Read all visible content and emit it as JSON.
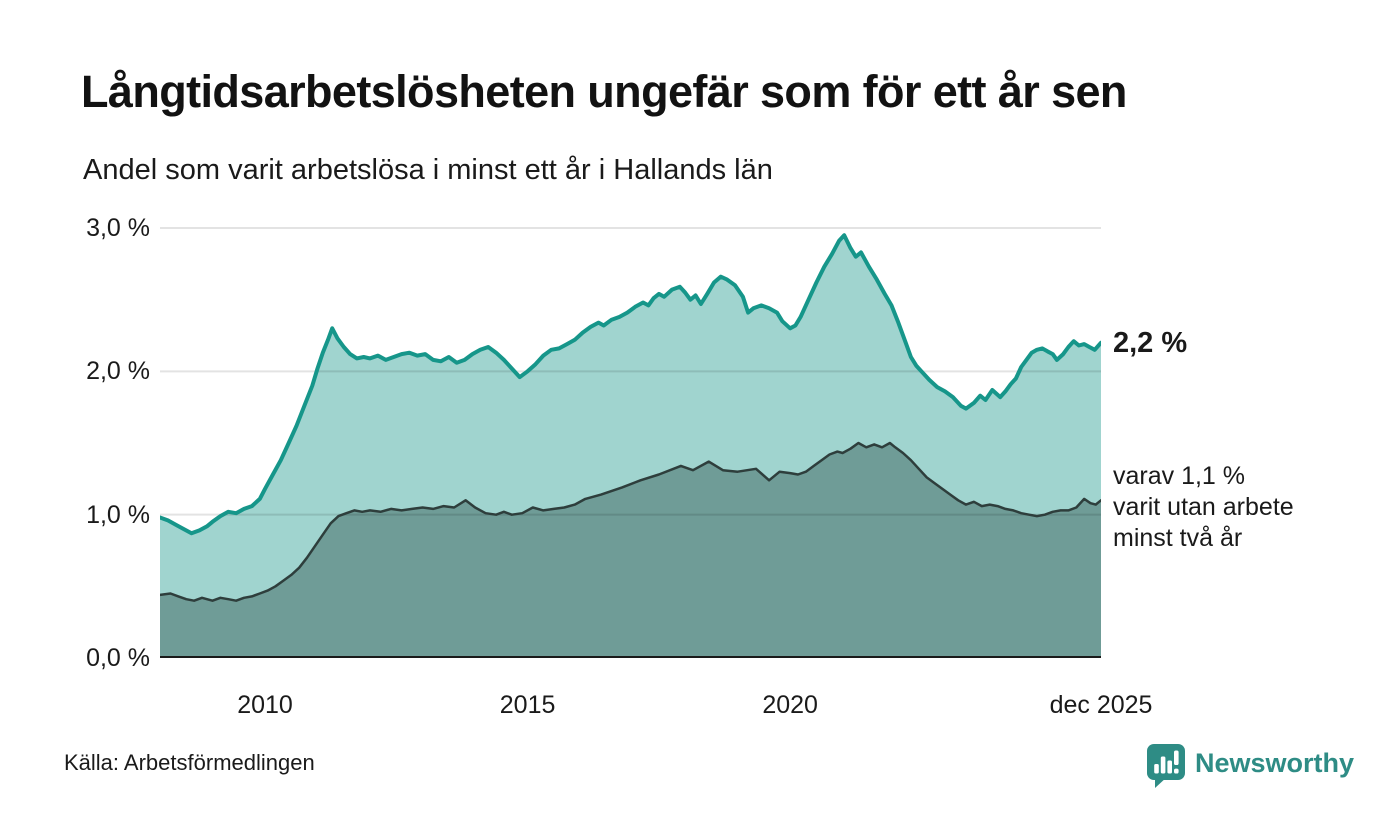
{
  "header": {
    "title": "Långtidsarbetslösheten ungefär som för ett år sen",
    "subtitle": "Andel som varit arbetslösa i minst ett år i Hallands län"
  },
  "chart_data": {
    "type": "area",
    "title": "Långtidsarbetslösheten ungefär som för ett år sen",
    "subtitle": "Andel som varit arbetslösa i minst ett år i Hallands län",
    "x_domain": [
      2008.0,
      2025.92
    ],
    "y_domain": [
      0,
      3.0
    ],
    "grid": "horizontal",
    "y_ticks": [
      {
        "value": 3.0,
        "label": "3,0 %"
      },
      {
        "value": 2.0,
        "label": "2,0 %"
      },
      {
        "value": 1.0,
        "label": "1,0 %"
      },
      {
        "value": 0.0,
        "label": "0,0 %"
      }
    ],
    "x_ticks": [
      {
        "value": 2010,
        "label": "2010"
      },
      {
        "value": 2015,
        "label": "2015"
      },
      {
        "value": 2020,
        "label": "2020"
      },
      {
        "value": 2025.92,
        "label": "dec 2025"
      }
    ],
    "annotations": {
      "latest_total": "2,2 %",
      "subset": [
        "varav 1,1 %",
        "varit utan arbete",
        "minst två år"
      ]
    },
    "series": [
      {
        "name": "arbetslösa minst ett år",
        "fill": "#a0d4cf",
        "stroke": "#16968a",
        "stroke_width": 4,
        "latest_value": 2.2,
        "points": [
          [
            2008.0,
            0.98
          ],
          [
            2008.15,
            0.96
          ],
          [
            2008.3,
            0.93
          ],
          [
            2008.45,
            0.9
          ],
          [
            2008.6,
            0.87
          ],
          [
            2008.75,
            0.89
          ],
          [
            2008.9,
            0.92
          ],
          [
            2009.0,
            0.95
          ],
          [
            2009.15,
            0.99
          ],
          [
            2009.3,
            1.02
          ],
          [
            2009.45,
            1.01
          ],
          [
            2009.6,
            1.04
          ],
          [
            2009.75,
            1.06
          ],
          [
            2009.9,
            1.11
          ],
          [
            2010.0,
            1.18
          ],
          [
            2010.15,
            1.28
          ],
          [
            2010.3,
            1.38
          ],
          [
            2010.45,
            1.5
          ],
          [
            2010.6,
            1.62
          ],
          [
            2010.75,
            1.76
          ],
          [
            2010.9,
            1.9
          ],
          [
            2011.0,
            2.02
          ],
          [
            2011.1,
            2.13
          ],
          [
            2011.2,
            2.22
          ],
          [
            2011.28,
            2.3
          ],
          [
            2011.38,
            2.23
          ],
          [
            2011.5,
            2.17
          ],
          [
            2011.62,
            2.12
          ],
          [
            2011.75,
            2.09
          ],
          [
            2011.88,
            2.1
          ],
          [
            2012.0,
            2.09
          ],
          [
            2012.15,
            2.11
          ],
          [
            2012.3,
            2.08
          ],
          [
            2012.45,
            2.1
          ],
          [
            2012.6,
            2.12
          ],
          [
            2012.75,
            2.13
          ],
          [
            2012.9,
            2.11
          ],
          [
            2013.05,
            2.12
          ],
          [
            2013.2,
            2.08
          ],
          [
            2013.35,
            2.07
          ],
          [
            2013.5,
            2.1
          ],
          [
            2013.65,
            2.06
          ],
          [
            2013.8,
            2.08
          ],
          [
            2013.95,
            2.12
          ],
          [
            2014.1,
            2.15
          ],
          [
            2014.25,
            2.17
          ],
          [
            2014.4,
            2.13
          ],
          [
            2014.55,
            2.08
          ],
          [
            2014.7,
            2.02
          ],
          [
            2014.85,
            1.96
          ],
          [
            2015.0,
            2.0
          ],
          [
            2015.15,
            2.05
          ],
          [
            2015.3,
            2.11
          ],
          [
            2015.45,
            2.15
          ],
          [
            2015.6,
            2.16
          ],
          [
            2015.75,
            2.19
          ],
          [
            2015.9,
            2.22
          ],
          [
            2016.05,
            2.27
          ],
          [
            2016.2,
            2.31
          ],
          [
            2016.35,
            2.34
          ],
          [
            2016.45,
            2.32
          ],
          [
            2016.6,
            2.36
          ],
          [
            2016.75,
            2.38
          ],
          [
            2016.9,
            2.41
          ],
          [
            2017.05,
            2.45
          ],
          [
            2017.2,
            2.48
          ],
          [
            2017.3,
            2.46
          ],
          [
            2017.4,
            2.51
          ],
          [
            2017.5,
            2.54
          ],
          [
            2017.6,
            2.52
          ],
          [
            2017.75,
            2.57
          ],
          [
            2017.9,
            2.59
          ],
          [
            2018.0,
            2.55
          ],
          [
            2018.1,
            2.5
          ],
          [
            2018.2,
            2.53
          ],
          [
            2018.3,
            2.47
          ],
          [
            2018.42,
            2.54
          ],
          [
            2018.55,
            2.62
          ],
          [
            2018.68,
            2.66
          ],
          [
            2018.8,
            2.64
          ],
          [
            2018.95,
            2.6
          ],
          [
            2019.1,
            2.52
          ],
          [
            2019.2,
            2.41
          ],
          [
            2019.3,
            2.44
          ],
          [
            2019.45,
            2.46
          ],
          [
            2019.6,
            2.44
          ],
          [
            2019.75,
            2.41
          ],
          [
            2019.85,
            2.35
          ],
          [
            2020.0,
            2.3
          ],
          [
            2020.1,
            2.32
          ],
          [
            2020.2,
            2.38
          ],
          [
            2020.35,
            2.5
          ],
          [
            2020.5,
            2.62
          ],
          [
            2020.65,
            2.73
          ],
          [
            2020.8,
            2.82
          ],
          [
            2020.93,
            2.91
          ],
          [
            2021.03,
            2.95
          ],
          [
            2021.15,
            2.86
          ],
          [
            2021.25,
            2.8
          ],
          [
            2021.35,
            2.83
          ],
          [
            2021.5,
            2.73
          ],
          [
            2021.65,
            2.64
          ],
          [
            2021.8,
            2.54
          ],
          [
            2021.93,
            2.46
          ],
          [
            2022.05,
            2.35
          ],
          [
            2022.2,
            2.2
          ],
          [
            2022.3,
            2.1
          ],
          [
            2022.4,
            2.04
          ],
          [
            2022.5,
            2.0
          ],
          [
            2022.65,
            1.94
          ],
          [
            2022.8,
            1.89
          ],
          [
            2022.95,
            1.86
          ],
          [
            2023.1,
            1.82
          ],
          [
            2023.25,
            1.76
          ],
          [
            2023.35,
            1.74
          ],
          [
            2023.5,
            1.78
          ],
          [
            2023.62,
            1.83
          ],
          [
            2023.72,
            1.8
          ],
          [
            2023.85,
            1.87
          ],
          [
            2024.0,
            1.82
          ],
          [
            2024.1,
            1.86
          ],
          [
            2024.2,
            1.91
          ],
          [
            2024.3,
            1.95
          ],
          [
            2024.4,
            2.03
          ],
          [
            2024.5,
            2.08
          ],
          [
            2024.6,
            2.13
          ],
          [
            2024.7,
            2.15
          ],
          [
            2024.8,
            2.16
          ],
          [
            2024.9,
            2.14
          ],
          [
            2025.0,
            2.12
          ],
          [
            2025.08,
            2.08
          ],
          [
            2025.2,
            2.12
          ],
          [
            2025.3,
            2.17
          ],
          [
            2025.4,
            2.21
          ],
          [
            2025.5,
            2.18
          ],
          [
            2025.6,
            2.19
          ],
          [
            2025.7,
            2.17
          ],
          [
            2025.8,
            2.15
          ],
          [
            2025.92,
            2.2
          ]
        ]
      },
      {
        "name": "varav utan arbete minst två år",
        "fill": "#6f9c97",
        "stroke": "#2e3e3c",
        "stroke_width": 2.5,
        "latest_value": 1.1,
        "points": [
          [
            2008.0,
            0.44
          ],
          [
            2008.2,
            0.45
          ],
          [
            2008.35,
            0.43
          ],
          [
            2008.5,
            0.41
          ],
          [
            2008.65,
            0.4
          ],
          [
            2008.8,
            0.42
          ],
          [
            2009.0,
            0.4
          ],
          [
            2009.15,
            0.42
          ],
          [
            2009.3,
            0.41
          ],
          [
            2009.45,
            0.4
          ],
          [
            2009.6,
            0.42
          ],
          [
            2009.75,
            0.43
          ],
          [
            2009.9,
            0.45
          ],
          [
            2010.05,
            0.47
          ],
          [
            2010.2,
            0.5
          ],
          [
            2010.35,
            0.54
          ],
          [
            2010.5,
            0.58
          ],
          [
            2010.65,
            0.63
          ],
          [
            2010.8,
            0.7
          ],
          [
            2010.95,
            0.78
          ],
          [
            2011.1,
            0.86
          ],
          [
            2011.25,
            0.94
          ],
          [
            2011.4,
            0.99
          ],
          [
            2011.55,
            1.01
          ],
          [
            2011.7,
            1.03
          ],
          [
            2011.85,
            1.02
          ],
          [
            2012.0,
            1.03
          ],
          [
            2012.2,
            1.02
          ],
          [
            2012.4,
            1.04
          ],
          [
            2012.6,
            1.03
          ],
          [
            2012.8,
            1.04
          ],
          [
            2013.0,
            1.05
          ],
          [
            2013.2,
            1.04
          ],
          [
            2013.4,
            1.06
          ],
          [
            2013.6,
            1.05
          ],
          [
            2013.82,
            1.1
          ],
          [
            2014.0,
            1.05
          ],
          [
            2014.2,
            1.01
          ],
          [
            2014.4,
            1.0
          ],
          [
            2014.55,
            1.02
          ],
          [
            2014.7,
            1.0
          ],
          [
            2014.9,
            1.01
          ],
          [
            2015.1,
            1.05
          ],
          [
            2015.3,
            1.03
          ],
          [
            2015.5,
            1.04
          ],
          [
            2015.7,
            1.05
          ],
          [
            2015.9,
            1.07
          ],
          [
            2016.1,
            1.11
          ],
          [
            2016.4,
            1.14
          ],
          [
            2016.8,
            1.19
          ],
          [
            2017.15,
            1.24
          ],
          [
            2017.5,
            1.28
          ],
          [
            2017.92,
            1.34
          ],
          [
            2018.15,
            1.31
          ],
          [
            2018.45,
            1.37
          ],
          [
            2018.72,
            1.31
          ],
          [
            2019.0,
            1.3
          ],
          [
            2019.35,
            1.32
          ],
          [
            2019.6,
            1.24
          ],
          [
            2019.8,
            1.3
          ],
          [
            2020.0,
            1.29
          ],
          [
            2020.15,
            1.28
          ],
          [
            2020.3,
            1.3
          ],
          [
            2020.45,
            1.34
          ],
          [
            2020.6,
            1.38
          ],
          [
            2020.75,
            1.42
          ],
          [
            2020.9,
            1.44
          ],
          [
            2021.0,
            1.43
          ],
          [
            2021.15,
            1.46
          ],
          [
            2021.3,
            1.5
          ],
          [
            2021.45,
            1.47
          ],
          [
            2021.6,
            1.49
          ],
          [
            2021.75,
            1.47
          ],
          [
            2021.9,
            1.5
          ],
          [
            2022.0,
            1.47
          ],
          [
            2022.15,
            1.43
          ],
          [
            2022.3,
            1.38
          ],
          [
            2022.45,
            1.32
          ],
          [
            2022.6,
            1.26
          ],
          [
            2022.75,
            1.22
          ],
          [
            2022.9,
            1.18
          ],
          [
            2023.05,
            1.14
          ],
          [
            2023.2,
            1.1
          ],
          [
            2023.35,
            1.07
          ],
          [
            2023.5,
            1.09
          ],
          [
            2023.65,
            1.06
          ],
          [
            2023.8,
            1.07
          ],
          [
            2023.95,
            1.06
          ],
          [
            2024.1,
            1.04
          ],
          [
            2024.25,
            1.03
          ],
          [
            2024.4,
            1.01
          ],
          [
            2024.55,
            1.0
          ],
          [
            2024.7,
            0.99
          ],
          [
            2024.85,
            1.0
          ],
          [
            2025.0,
            1.02
          ],
          [
            2025.15,
            1.03
          ],
          [
            2025.3,
            1.03
          ],
          [
            2025.45,
            1.05
          ],
          [
            2025.6,
            1.11
          ],
          [
            2025.72,
            1.08
          ],
          [
            2025.82,
            1.07
          ],
          [
            2025.92,
            1.1
          ]
        ]
      }
    ],
    "colors": {
      "gridline": "rgba(0,0,0,0.11)",
      "baseline": "#1a1a1a",
      "text": "#1a1a1a"
    }
  },
  "footer": {
    "source": "Källa: Arbetsförmedlingen",
    "brand": "Newsworthy",
    "brand_color": "#2e8c85"
  }
}
